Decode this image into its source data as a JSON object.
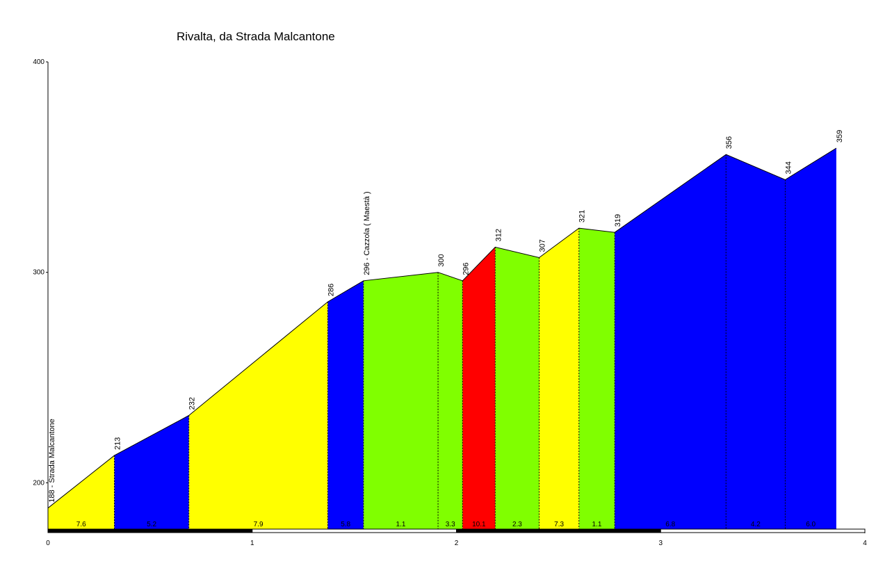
{
  "chart_data": {
    "type": "area",
    "title": "Rivalta, da Strada Malcantone",
    "xlabel": "",
    "ylabel": "",
    "xlim": [
      0,
      4
    ],
    "ylim": [
      178,
      400
    ],
    "x_ticks": [
      "0",
      "1",
      "2",
      "3",
      "4"
    ],
    "y_ticks": [
      "200",
      "300",
      "400"
    ],
    "profile": [
      {
        "x": 0.0,
        "y": 188,
        "label": "188 - Strada Malcantone"
      },
      {
        "x": 0.325,
        "y": 213,
        "label": "213"
      },
      {
        "x": 0.69,
        "y": 232,
        "label": "232"
      },
      {
        "x": 1.37,
        "y": 286,
        "label": "286"
      },
      {
        "x": 1.545,
        "y": 296,
        "label": "296 - Cazzola ( Maestà )"
      },
      {
        "x": 1.91,
        "y": 300,
        "label": "300"
      },
      {
        "x": 2.03,
        "y": 296,
        "label": "296"
      },
      {
        "x": 2.19,
        "y": 312,
        "label": "312"
      },
      {
        "x": 2.405,
        "y": 307,
        "label": "307"
      },
      {
        "x": 2.6,
        "y": 321,
        "label": "321"
      },
      {
        "x": 2.775,
        "y": 319,
        "label": "319"
      },
      {
        "x": 3.32,
        "y": 356,
        "label": "356"
      },
      {
        "x": 3.61,
        "y": 344,
        "label": "344"
      },
      {
        "x": 3.86,
        "y": 359,
        "label": "359"
      }
    ],
    "segments": [
      {
        "x0": 0.0,
        "x1": 0.325,
        "gradient": "7.6",
        "color": "#ffff00"
      },
      {
        "x0": 0.325,
        "x1": 0.69,
        "gradient": "5.2",
        "color": "#0000ff"
      },
      {
        "x0": 0.69,
        "x1": 1.37,
        "gradient": "7.9",
        "color": "#ffff00"
      },
      {
        "x0": 1.37,
        "x1": 1.545,
        "gradient": "5.8",
        "color": "#0000ff"
      },
      {
        "x0": 1.545,
        "x1": 2.03,
        "gradient": "1.1",
        "color": "#80ff00",
        "gradients": [
          {
            "x0": 1.545,
            "x1": 1.91,
            "value": "1.1"
          },
          {
            "x0": 1.91,
            "x1": 2.03,
            "value": "3.3"
          }
        ]
      },
      {
        "x0": 2.03,
        "x1": 2.19,
        "gradient": "10.1",
        "color": "#ff0000"
      },
      {
        "x0": 2.19,
        "x1": 2.405,
        "gradient": "2.3",
        "color": "#80ff00"
      },
      {
        "x0": 2.405,
        "x1": 2.6,
        "gradient": "7.3",
        "color": "#ffff00"
      },
      {
        "x0": 2.6,
        "x1": 2.775,
        "gradient": "1.1",
        "color": "#80ff00"
      },
      {
        "x0": 2.775,
        "x1": 3.86,
        "gradient": "6.8",
        "color": "#0000ff",
        "gradients": [
          {
            "x0": 2.775,
            "x1": 3.32,
            "value": "6.8"
          },
          {
            "x0": 3.32,
            "x1": 3.61,
            "value": "4.2"
          },
          {
            "x0": 3.61,
            "x1": 3.86,
            "value": "6.0"
          }
        ]
      }
    ]
  }
}
